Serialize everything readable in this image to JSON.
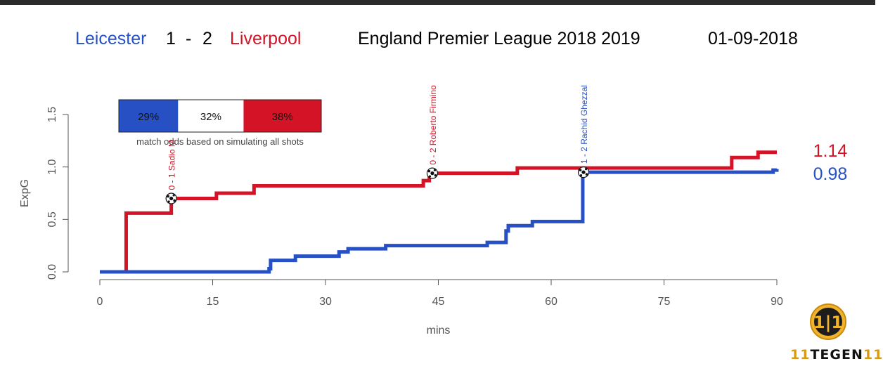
{
  "header": {
    "home_team": "Leicester",
    "home_score": "1",
    "score_sep": "-",
    "away_score": "2",
    "away_team": "Liverpool",
    "competition": "England Premier League 2018 2019",
    "date": "01-09-2018"
  },
  "colors": {
    "home": "#2650c4",
    "away": "#d41426",
    "axis": "#555555"
  },
  "odds_box": {
    "home_pct": "29%",
    "draw_pct": "32%",
    "away_pct": "38%",
    "home_frac": 0.29,
    "draw_frac": 0.32,
    "away_frac": 0.38,
    "caption": "match odds based on simulating all shots"
  },
  "logo": {
    "mark": "1|1",
    "text_a": "11",
    "text_b": "TEGEN",
    "text_c": "11"
  },
  "chart_data": {
    "type": "line",
    "line_shape": "step",
    "xlabel": "mins",
    "ylabel": "ExpG",
    "xlim": [
      0,
      90
    ],
    "ylim": [
      0,
      1.5
    ],
    "xticks": [
      0,
      15,
      30,
      45,
      60,
      75,
      90
    ],
    "yticks": [
      0.0,
      0.5,
      1.0,
      1.5
    ],
    "ytick_labels": [
      "0.0",
      "0.5",
      "1.0",
      "1.5"
    ],
    "series": [
      {
        "name": "Leicester",
        "team": "home",
        "x": [
          0,
          22.5,
          22.7,
          26,
          31.8,
          33,
          38,
          51.5,
          54,
          54.3,
          57.5,
          64.2,
          89.5,
          90
        ],
        "y": [
          0,
          0.03,
          0.11,
          0.15,
          0.19,
          0.22,
          0.25,
          0.28,
          0.39,
          0.44,
          0.48,
          0.95,
          0.97,
          0.98
        ],
        "final_label": "0.98"
      },
      {
        "name": "Liverpool",
        "team": "away",
        "x": [
          0,
          3.5,
          9.5,
          15.5,
          20.5,
          43,
          43.8,
          55.5,
          84,
          87.5,
          90
        ],
        "y": [
          0,
          0.56,
          0.7,
          0.75,
          0.82,
          0.87,
          0.94,
          0.99,
          1.09,
          1.14,
          1.14
        ],
        "final_label": "1.14"
      }
    ],
    "goals": [
      {
        "minute": 9.5,
        "xg": 0.7,
        "team": "away",
        "label": "0 - 1 Sadio M"
      },
      {
        "minute": 44.2,
        "xg": 0.94,
        "team": "away",
        "label": "0 - 2 Roberto Firmino"
      },
      {
        "minute": 64.3,
        "xg": 0.95,
        "team": "home",
        "label": "1 - 2 Rachid Ghezzal"
      }
    ]
  }
}
